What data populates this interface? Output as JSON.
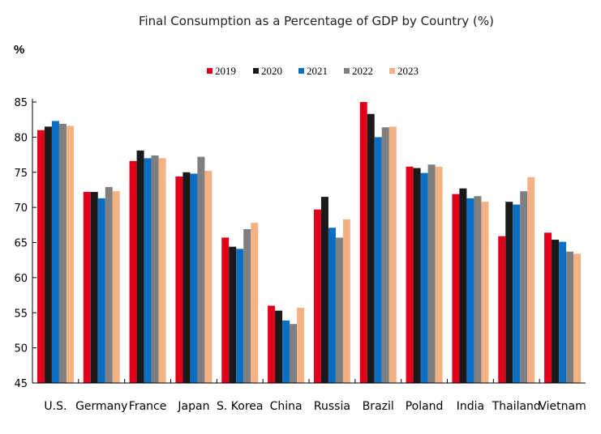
{
  "chart_data": {
    "type": "bar",
    "title": "Final Consumption as a Percentage of GDP by Country (%)",
    "ylabel": "%",
    "ylim": [
      45,
      85
    ],
    "yticks": [
      45,
      50,
      55,
      60,
      65,
      70,
      75,
      80,
      85
    ],
    "grid": false,
    "legend_position": "top-center",
    "categories": [
      "U.S.",
      "Germany",
      "France",
      "Japan",
      "S. Korea",
      "China",
      "Russia",
      "Brazil",
      "Poland",
      "India",
      "Thailand",
      "Vietnam"
    ],
    "series": [
      {
        "name": "2019",
        "color": "#e0001b",
        "values": [
          81.0,
          72.2,
          76.6,
          74.4,
          65.7,
          56.0,
          69.7,
          85.0,
          75.8,
          71.9,
          65.9,
          66.4
        ]
      },
      {
        "name": "2020",
        "color": "#1a1a1a",
        "values": [
          81.5,
          72.2,
          78.1,
          75.0,
          64.4,
          55.3,
          71.5,
          83.3,
          75.6,
          72.7,
          70.8,
          65.4
        ]
      },
      {
        "name": "2021",
        "color": "#0a6fc2",
        "values": [
          82.3,
          71.3,
          77.0,
          74.8,
          64.1,
          53.9,
          67.1,
          80.0,
          74.9,
          71.3,
          70.4,
          65.1
        ]
      },
      {
        "name": "2022",
        "color": "#7f7f7f",
        "values": [
          81.9,
          72.9,
          77.4,
          77.2,
          66.9,
          53.4,
          65.7,
          81.4,
          76.1,
          71.6,
          72.3,
          63.7
        ]
      },
      {
        "name": "2023",
        "color": "#f4b183",
        "values": [
          81.6,
          72.3,
          77.0,
          75.2,
          67.8,
          55.7,
          68.3,
          81.5,
          75.8,
          70.8,
          74.3,
          63.4
        ]
      }
    ]
  }
}
